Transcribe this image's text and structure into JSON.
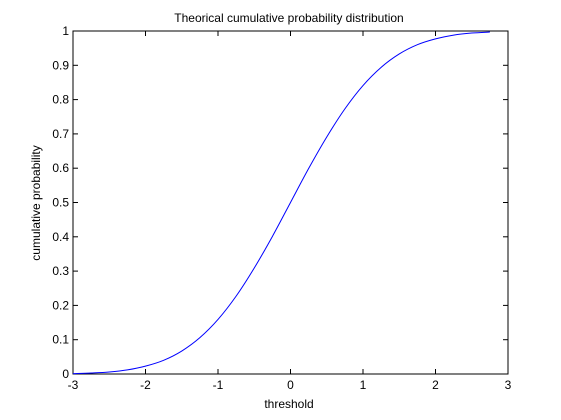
{
  "chart_data": {
    "type": "line",
    "title": "Theorical cumulative probability distribution",
    "xlabel": "threshold",
    "ylabel": "cumulative probability",
    "xlim": [
      -3,
      3
    ],
    "ylim": [
      0,
      1
    ],
    "x_ticks": [
      -3,
      -2,
      -1,
      0,
      1,
      2,
      3
    ],
    "y_ticks": [
      0,
      0.1,
      0.2,
      0.3,
      0.4,
      0.5,
      0.6,
      0.7,
      0.8,
      0.9,
      1
    ],
    "grid": false,
    "series": [
      {
        "color": "#0000ff",
        "x": [
          -3,
          -2.75,
          -2.5,
          -2.25,
          -2,
          -1.75,
          -1.5,
          -1.25,
          -1,
          -0.75,
          -0.5,
          -0.25,
          0,
          0.25,
          0.5,
          0.75,
          1,
          1.25,
          1.5,
          1.75,
          2,
          2.25,
          2.5,
          2.75
        ],
        "y": [
          0.001,
          0.003,
          0.006,
          0.012,
          0.023,
          0.04,
          0.067,
          0.106,
          0.159,
          0.227,
          0.309,
          0.401,
          0.5,
          0.599,
          0.691,
          0.773,
          0.841,
          0.894,
          0.933,
          0.96,
          0.977,
          0.988,
          0.994,
          0.997
        ]
      }
    ]
  }
}
